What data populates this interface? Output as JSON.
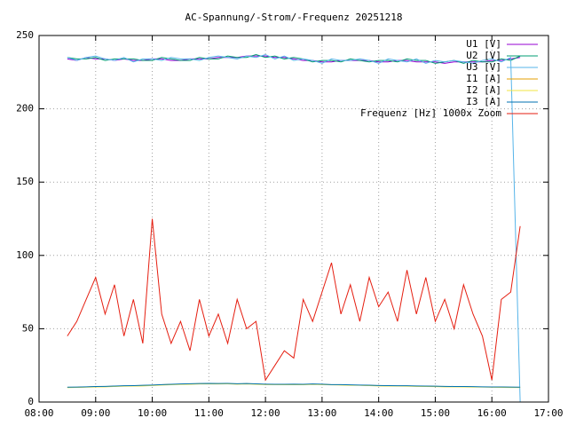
{
  "chart_data": {
    "type": "line",
    "title": "AC-Spannung/-Strom/-Frequenz 20251218",
    "x": [
      8.5,
      8.667,
      8.833,
      9,
      9.167,
      9.333,
      9.5,
      9.667,
      9.833,
      10,
      10.167,
      10.333,
      10.5,
      10.667,
      10.833,
      11,
      11.167,
      11.333,
      11.5,
      11.667,
      11.833,
      12,
      12.167,
      12.333,
      12.5,
      12.667,
      12.833,
      13,
      13.167,
      13.333,
      13.5,
      13.667,
      13.833,
      14,
      14.167,
      14.333,
      14.5,
      14.667,
      14.833,
      15,
      15.167,
      15.333,
      15.5,
      15.667,
      15.833,
      16,
      16.167,
      16.333,
      16.5
    ],
    "series": [
      {
        "name": "U1 [V]",
        "color": "#9400d3",
        "values": [
          234,
          233,
          235,
          234,
          234,
          233,
          234,
          233,
          233,
          234,
          234,
          233,
          233,
          234,
          234,
          234,
          235,
          235,
          235,
          236,
          236,
          236,
          235,
          235,
          234,
          233,
          233,
          232,
          232,
          233,
          233,
          233,
          233,
          232,
          232,
          233,
          233,
          232,
          232,
          232,
          231,
          232,
          232,
          232,
          232,
          233,
          233,
          234,
          235
        ]
      },
      {
        "name": "U2 [V]",
        "color": "#009e73",
        "values": [
          235,
          234,
          234,
          235,
          233,
          234,
          234,
          234,
          233,
          233,
          235,
          234,
          233,
          233,
          235,
          234,
          234,
          236,
          235,
          235,
          237,
          235,
          236,
          234,
          235,
          234,
          232,
          233,
          233,
          232,
          234,
          233,
          232,
          233,
          233,
          232,
          234,
          233,
          233,
          231,
          232,
          233,
          231,
          233,
          232,
          232,
          234,
          233,
          236
        ]
      },
      {
        "name": "U3 [V]",
        "color": "#56b4e9",
        "values": [
          235,
          233,
          235,
          236,
          234,
          233,
          235,
          232,
          234,
          234,
          233,
          235,
          234,
          234,
          233,
          235,
          236,
          235,
          234,
          236,
          235,
          237,
          234,
          236,
          233,
          234,
          233,
          231,
          234,
          233,
          233,
          234,
          233,
          231,
          234,
          233,
          232,
          234,
          231,
          233,
          232,
          233,
          232,
          231,
          233,
          234,
          232,
          235,
          0
        ]
      },
      {
        "name": "I1 [A]",
        "color": "#e69f00",
        "values": [
          10,
          10,
          10.3,
          10.5,
          10.5,
          10.8,
          11,
          11,
          11.2,
          11.5,
          11.8,
          12,
          12.2,
          12.3,
          12.5,
          12.5,
          12.5,
          12.5,
          12.3,
          12.5,
          12.3,
          12,
          12,
          12,
          12,
          12,
          12.2,
          12,
          11.8,
          11.8,
          11.5,
          11.5,
          11.3,
          11.2,
          11,
          11,
          11,
          10.8,
          10.8,
          10.7,
          10.5,
          10.5,
          10.5,
          10.3,
          10.3,
          10.2,
          10.2,
          10,
          10
        ]
      },
      {
        "name": "I2 [A]",
        "color": "#f0e442",
        "values": [
          9.8,
          10,
          10.1,
          10.3,
          10.4,
          10.6,
          10.8,
          10.9,
          11,
          11.3,
          11.6,
          11.8,
          12,
          12.1,
          12.3,
          12.4,
          12.3,
          12.4,
          12.2,
          12.3,
          12.1,
          11.9,
          11.9,
          11.8,
          11.9,
          11.8,
          12,
          11.9,
          11.7,
          11.6,
          11.4,
          11.4,
          11.2,
          11,
          10.9,
          10.9,
          10.8,
          10.7,
          10.6,
          10.5,
          10.4,
          10.4,
          10.3,
          10.2,
          10.2,
          10.1,
          10,
          9.9,
          9.9
        ]
      },
      {
        "name": "I3 [A]",
        "color": "#0072b2",
        "values": [
          10.1,
          10.2,
          10.4,
          10.6,
          10.7,
          10.9,
          11.1,
          11.2,
          11.4,
          11.6,
          11.9,
          12.1,
          12.3,
          12.5,
          12.6,
          12.7,
          12.6,
          12.7,
          12.5,
          12.6,
          12.4,
          12.2,
          12.1,
          12.1,
          12.2,
          12.1,
          12.3,
          12.2,
          11.9,
          11.9,
          11.7,
          11.6,
          11.5,
          11.3,
          11.2,
          11.1,
          11.1,
          11,
          10.9,
          10.8,
          10.7,
          10.6,
          10.6,
          10.5,
          10.4,
          10.3,
          10.3,
          10.2,
          10.1
        ]
      },
      {
        "name": "Frequenz [Hz] 1000x Zoom",
        "color": "#e51e10",
        "values": [
          45,
          55,
          70,
          85,
          60,
          80,
          45,
          70,
          40,
          125,
          60,
          40,
          55,
          35,
          70,
          45,
          60,
          40,
          70,
          50,
          55,
          15,
          25,
          35,
          30,
          70,
          55,
          75,
          95,
          60,
          80,
          55,
          85,
          65,
          75,
          55,
          90,
          60,
          85,
          55,
          70,
          50,
          80,
          60,
          45,
          15,
          70,
          75,
          120
        ]
      }
    ],
    "xlim": [
      8,
      17
    ],
    "xticks": [
      {
        "value": 8,
        "label": "08:00"
      },
      {
        "value": 9,
        "label": "09:00"
      },
      {
        "value": 10,
        "label": "10:00"
      },
      {
        "value": 11,
        "label": "11:00"
      },
      {
        "value": 12,
        "label": "12:00"
      },
      {
        "value": 13,
        "label": "13:00"
      },
      {
        "value": 14,
        "label": "14:00"
      },
      {
        "value": 15,
        "label": "15:00"
      },
      {
        "value": 16,
        "label": "16:00"
      },
      {
        "value": 17,
        "label": "17:00"
      }
    ],
    "ylim": [
      0,
      250
    ],
    "yticks": [
      0,
      50,
      100,
      150,
      200,
      250
    ],
    "grid": true,
    "legend": "top-right"
  }
}
